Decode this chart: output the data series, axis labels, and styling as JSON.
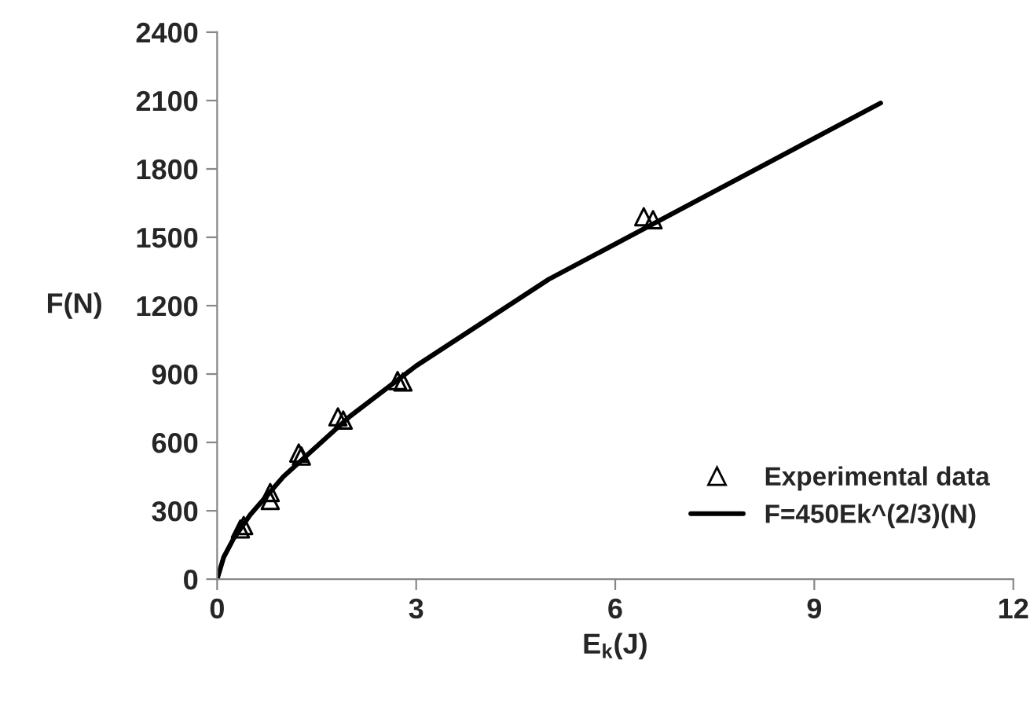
{
  "chart_data": {
    "type": "scatter",
    "xlabel": "E$_{k}$(J)",
    "ylabel": "F(N)",
    "xlim": [
      0,
      12
    ],
    "xticks": [
      0,
      3,
      6,
      9,
      12
    ],
    "ylim": [
      0,
      2400
    ],
    "yticks": [
      0,
      300,
      600,
      900,
      1200,
      1500,
      1800,
      2100,
      2400
    ],
    "grid": false,
    "legend": "bottom right",
    "series": [
      {
        "name": "Experimental data",
        "marker": "triangle",
        "color": "#000000",
        "x": [
          0.35,
          0.4,
          0.8,
          0.8,
          1.23,
          1.27,
          1.82,
          1.9,
          2.72,
          2.8,
          6.43,
          6.57
        ],
        "values": [
          220,
          235,
          380,
          345,
          553,
          540,
          712,
          698,
          871,
          865,
          1590,
          1577
        ]
      },
      {
        "name": "F=450Ek^(2/3)(N)",
        "type": "line",
        "marker": "none",
        "line_style": "solid",
        "color": "#000000",
        "x": [
          0,
          0.1,
          0.25,
          0.5,
          1,
          2,
          3,
          5,
          10
        ],
        "values": [
          0,
          97,
          179,
          283,
          450,
          714,
          936,
          1316,
          2089
        ]
      }
    ]
  }
}
